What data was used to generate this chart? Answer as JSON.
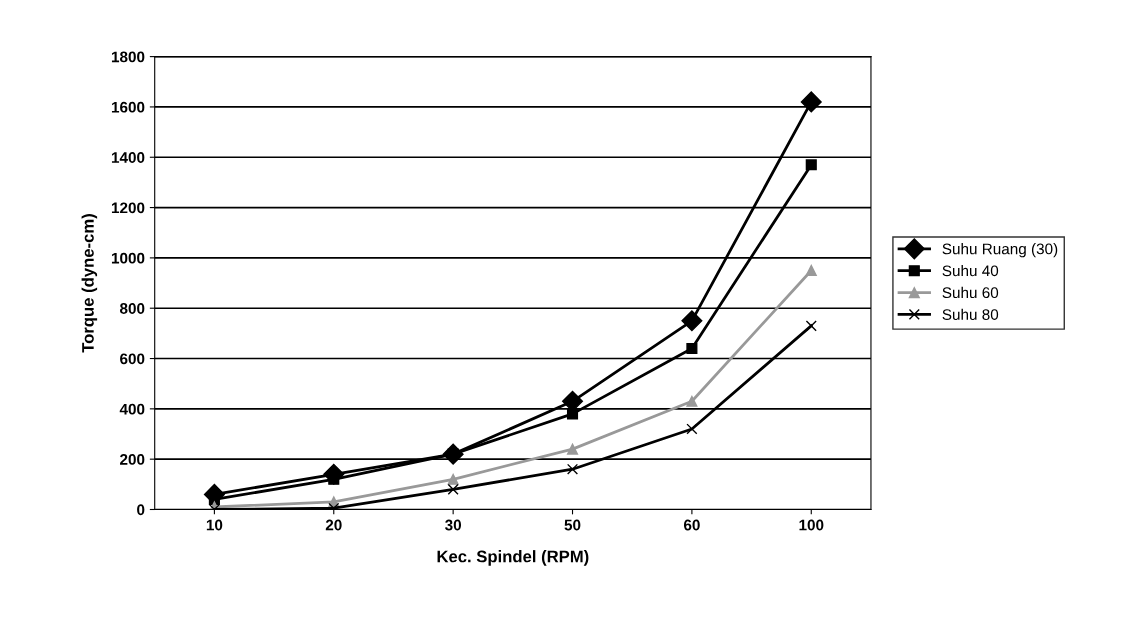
{
  "chart_data": {
    "type": "line",
    "xlabel": "Kec. Spindel (RPM)",
    "ylabel": "Torque (dyne-cm)",
    "categories": [
      "10",
      "20",
      "30",
      "50",
      "60",
      "100"
    ],
    "series": [
      {
        "name": "Suhu Ruang (30)",
        "color": "#000000",
        "marker": "diamond",
        "values": [
          60,
          140,
          220,
          430,
          750,
          1620
        ]
      },
      {
        "name": "Suhu 40",
        "color": "#000000",
        "marker": "square",
        "values": [
          40,
          120,
          220,
          380,
          640,
          1370
        ]
      },
      {
        "name": "Suhu 60",
        "color": "#999999",
        "marker": "triangle",
        "values": [
          10,
          30,
          120,
          240,
          430,
          950
        ]
      },
      {
        "name": "Suhu 80",
        "color": "#000000",
        "marker": "cross",
        "values": [
          0,
          5,
          80,
          160,
          320,
          730
        ]
      }
    ],
    "ylim": [
      0,
      1800
    ],
    "yticks": [
      0,
      200,
      400,
      600,
      800,
      1000,
      1200,
      1400,
      1600,
      1800
    ],
    "grid": "y",
    "legend": "right",
    "line_style": "solid"
  }
}
